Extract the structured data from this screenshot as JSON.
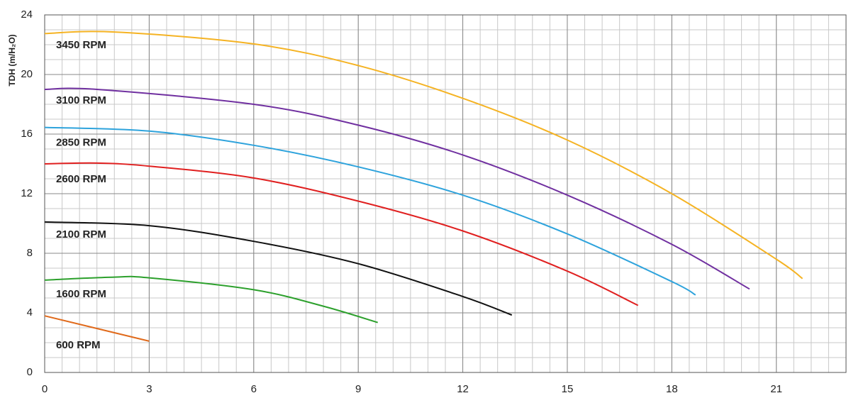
{
  "chart_data": {
    "type": "line",
    "y_label": "TDH (m/H₂O)",
    "xlim": [
      0,
      23
    ],
    "ylim": [
      0,
      24
    ],
    "xticks": [
      0,
      3,
      6,
      9,
      12,
      15,
      18,
      21
    ],
    "yticks": [
      0,
      4,
      8,
      12,
      16,
      20,
      24
    ],
    "grid": true,
    "minor_grid_step": {
      "x": 0.5,
      "y": 1
    },
    "series": [
      {
        "name": "3450 RPM",
        "color": "#f5b323",
        "x": [
          0,
          2,
          6,
          9,
          12,
          15,
          18,
          21,
          21.75
        ],
        "values": [
          22.75,
          22.85,
          22.05,
          20.6,
          18.4,
          15.6,
          12.0,
          7.6,
          6.3
        ]
      },
      {
        "name": "3100 RPM",
        "color": "#7030a0",
        "x": [
          0,
          1.5,
          6,
          9,
          12,
          15,
          18,
          20.23
        ],
        "values": [
          19.0,
          19.0,
          18.0,
          16.6,
          14.6,
          11.9,
          8.6,
          5.6
        ]
      },
      {
        "name": "2850 RPM",
        "color": "#2ea3dc",
        "x": [
          0,
          3,
          6,
          9,
          12,
          15,
          18,
          18.68
        ],
        "values": [
          16.45,
          16.2,
          15.25,
          13.8,
          11.9,
          9.3,
          6.1,
          5.2
        ]
      },
      {
        "name": "2600 RPM",
        "color": "#e02020",
        "x": [
          0,
          1.5,
          3,
          6,
          9,
          12,
          15,
          17.03
        ],
        "values": [
          14.0,
          14.05,
          13.85,
          13.05,
          11.5,
          9.5,
          6.8,
          4.5
        ]
      },
      {
        "name": "2100 RPM",
        "color": "#111111",
        "x": [
          0,
          3,
          6,
          9,
          12,
          13.41
        ],
        "values": [
          10.1,
          9.85,
          8.8,
          7.3,
          5.1,
          3.85
        ]
      },
      {
        "name": "1600 RPM",
        "color": "#2ca02c",
        "x": [
          0,
          2,
          3,
          6,
          8,
          9.56
        ],
        "values": [
          6.2,
          6.4,
          6.35,
          5.55,
          4.45,
          3.35
        ]
      },
      {
        "name": "600 RPM",
        "color": "#e06a1b",
        "x": [
          0,
          3
        ],
        "values": [
          3.8,
          2.1
        ]
      }
    ]
  }
}
